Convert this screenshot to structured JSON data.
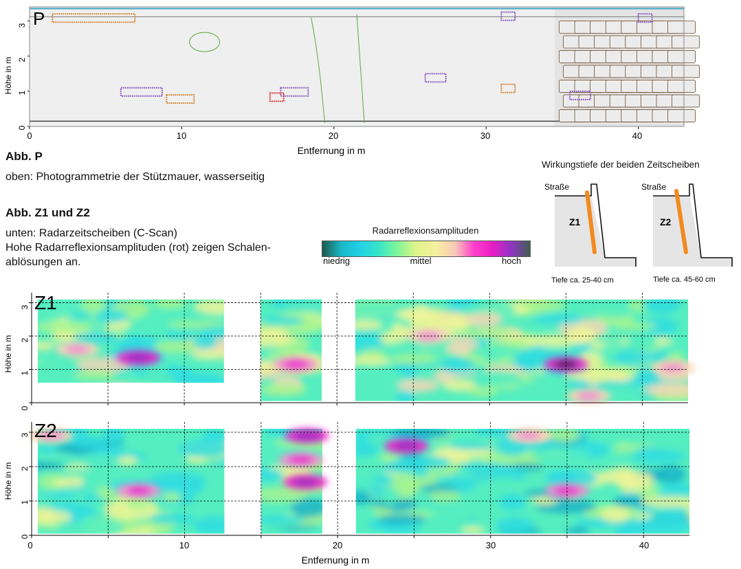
{
  "colors": {
    "scale": [
      "#1d5a4e",
      "#19b7c6",
      "#22d0e6",
      "#35e5c9",
      "#7ff59a",
      "#dff58a",
      "#f7ef9f",
      "#f8c9b8",
      "#ff3ecb",
      "#e81ec5",
      "#8f34c4",
      "#3f5f52"
    ]
  },
  "photo": {
    "label": "P",
    "ylabel": "Höhe in m",
    "xlabel": "Entfernung in m",
    "xticks": [
      "0",
      "10",
      "20",
      "30",
      "40"
    ],
    "yticks": [
      "0",
      "1",
      "2",
      "3"
    ]
  },
  "captions": {
    "abb_p_title": "Abb. P",
    "abb_p_text": "oben: Photogrammetrie der Stützmauer, wasserseitig",
    "abb_z_title": "Abb. Z1 und Z2",
    "abb_z_line1": "unten: Radarzeitscheiben (C-Scan)",
    "abb_z_line2": "Hohe Radarreflexionsamplituden (rot) zeigen Schalen-",
    "abb_z_line3": "ablösungen an."
  },
  "legend": {
    "title": "Radarreflexionsamplituden",
    "low": "niedrig",
    "mid": "mittel",
    "high": "hoch"
  },
  "depth_diagram": {
    "title": "Wirkungstiefe der beiden Zeitscheiben",
    "road_label": "Straße",
    "z1_label": "Z1",
    "z2_label": "Z2",
    "z1_depth": "Tiefe ca. 25-40 cm",
    "z2_depth": "Tiefe ca. 45-60 cm"
  },
  "chart_data": [
    {
      "type": "heatmap",
      "title": "Z1",
      "xlabel": "",
      "ylabel": "Höhe in m",
      "xlim": [
        0,
        43
      ],
      "ylim": [
        0,
        3.3
      ],
      "xticks": [
        0,
        5,
        10,
        15,
        20,
        25,
        30,
        35,
        40
      ],
      "yticks": [
        0,
        1,
        2,
        3
      ],
      "ytick_labels": [
        "0",
        "1",
        "2",
        "3"
      ],
      "scan_segments_x": [
        [
          0.4,
          12.6
        ],
        [
          15.0,
          19.0
        ],
        [
          21.2,
          43.0
        ]
      ],
      "amplitude_scale": [
        0,
        1
      ],
      "high_amplitude_zones": [
        {
          "x": 7.0,
          "y": 1.35,
          "level": 0.95
        },
        {
          "x": 3.0,
          "y": 1.6,
          "level": 0.8
        },
        {
          "x": 17.3,
          "y": 1.15,
          "level": 0.85
        },
        {
          "x": 26.0,
          "y": 2.0,
          "level": 0.8
        },
        {
          "x": 35.0,
          "y": 1.15,
          "level": 0.98
        },
        {
          "x": 42.0,
          "y": 1.05,
          "level": 0.8
        },
        {
          "x": 36.5,
          "y": 0.2,
          "level": 0.75
        }
      ]
    },
    {
      "type": "heatmap",
      "title": "Z2",
      "xlabel": "Entfernung in m",
      "ylabel": "Höhe in m",
      "xlim": [
        0,
        43
      ],
      "ylim": [
        0,
        3.3
      ],
      "xticks": [
        0,
        5,
        10,
        15,
        20,
        25,
        30,
        35,
        40
      ],
      "xtick_labels": [
        "0",
        "10",
        "20",
        "30",
        "40"
      ],
      "yticks": [
        0,
        1,
        2,
        3
      ],
      "ytick_labels": [
        "0",
        "1",
        "2",
        "3"
      ],
      "scan_segments_x": [
        [
          0.4,
          12.6
        ],
        [
          15.0,
          19.0
        ],
        [
          21.2,
          43.0
        ]
      ],
      "amplitude_scale": [
        0,
        1
      ],
      "high_amplitude_zones": [
        {
          "x": 1.3,
          "y": 2.9,
          "level": 0.8
        },
        {
          "x": 7.0,
          "y": 1.3,
          "level": 0.9
        },
        {
          "x": 18.0,
          "y": 2.9,
          "level": 0.95
        },
        {
          "x": 17.6,
          "y": 2.2,
          "level": 0.9
        },
        {
          "x": 17.9,
          "y": 1.55,
          "level": 0.95
        },
        {
          "x": 24.5,
          "y": 2.6,
          "level": 0.95
        },
        {
          "x": 35.0,
          "y": 1.3,
          "level": 0.9
        },
        {
          "x": 32.5,
          "y": 2.9,
          "level": 0.8
        }
      ]
    }
  ]
}
